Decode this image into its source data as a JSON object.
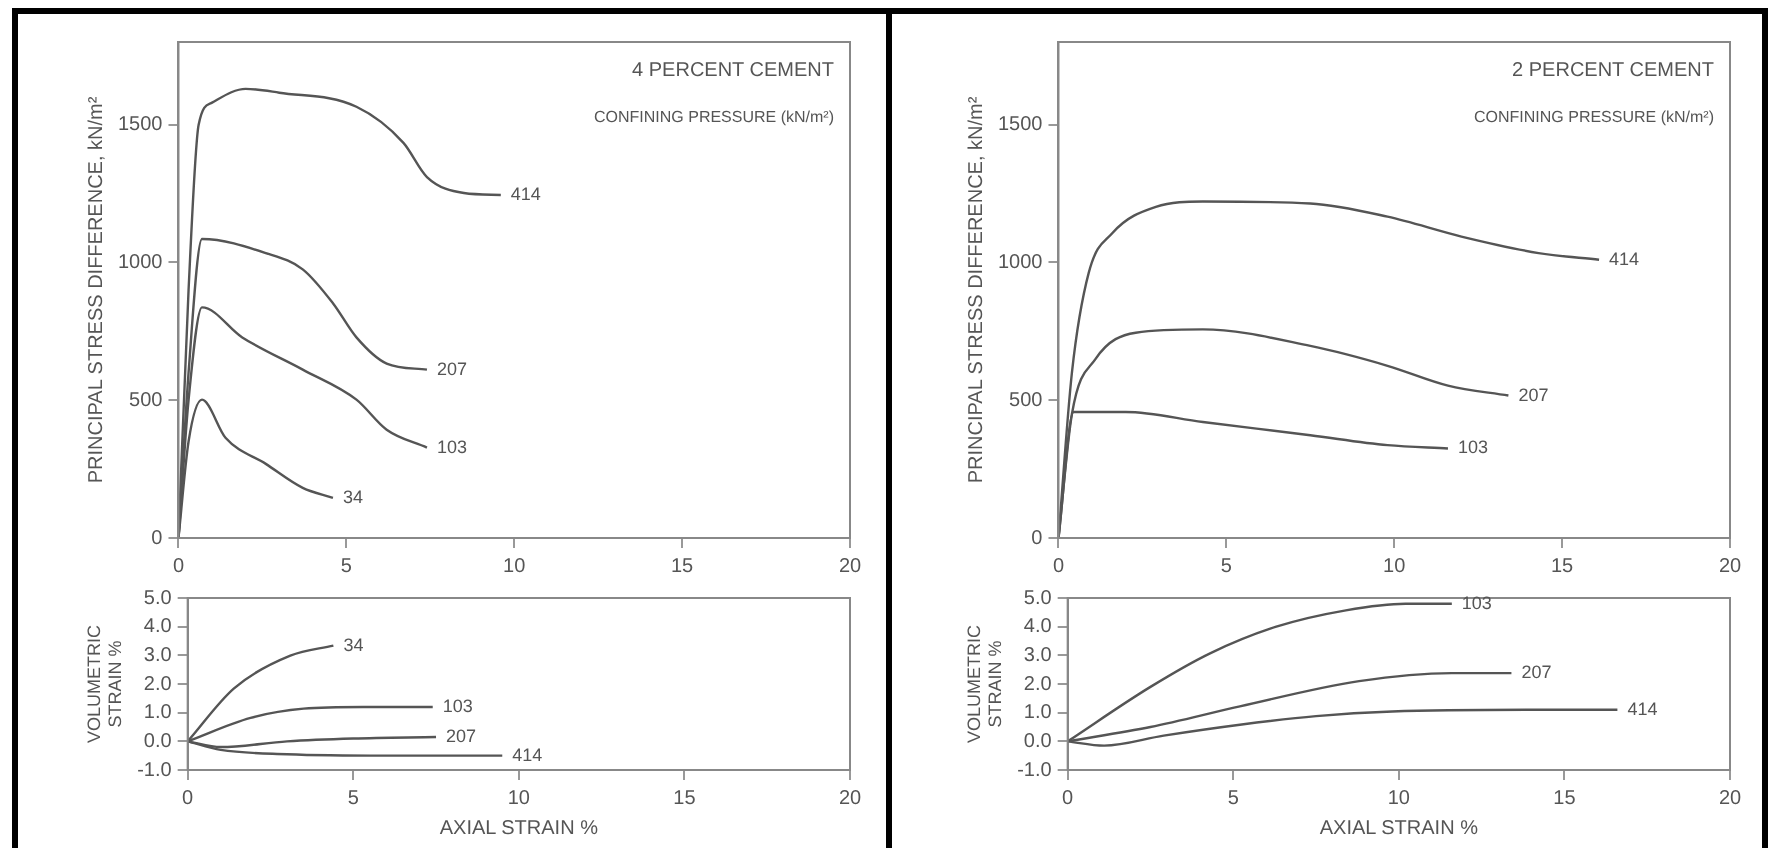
{
  "chart_data": [
    {
      "type": "line",
      "ylabel": "PRINCIPAL STRESS DIFFERENCE, kN/m²",
      "annotations": [
        "4 PERCENT CEMENT",
        "CONFINING PRESSURE (kN/m²)"
      ],
      "xlim": [
        0,
        20
      ],
      "xticks": [
        0,
        5,
        10,
        15,
        20
      ],
      "ylim": [
        0,
        1800
      ],
      "yticks": [
        0,
        500,
        1000,
        1500
      ],
      "marker": "none",
      "series": [
        {
          "name": "414",
          "color": "#555555",
          "x": [
            0,
            0.3,
            0.6,
            1,
            2,
            3,
            5.3,
            6.7,
            7.4,
            8.5,
            9.6
          ],
          "values": [
            0,
            900,
            1500,
            1580,
            1630,
            1616,
            1565,
            1434,
            1310,
            1252,
            1245
          ]
        },
        {
          "name": "207",
          "color": "#555555",
          "x": [
            0,
            0.3,
            0.7,
            2.6,
            3.7,
            4.6,
            5.3,
            6.2,
            7.4
          ],
          "values": [
            0,
            600,
            1085,
            1034,
            975,
            852,
            728,
            633,
            611
          ]
        },
        {
          "name": "103",
          "color": "#555555",
          "x": [
            0,
            0.3,
            0.7,
            1.9,
            3.7,
            5.3,
            6.2,
            7.4
          ],
          "values": [
            0,
            500,
            837,
            728,
            611,
            502,
            393,
            328
          ]
        },
        {
          "name": "34",
          "color": "#555555",
          "x": [
            0,
            0.3,
            0.7,
            1.4,
            2.6,
            3.7,
            4.6
          ],
          "values": [
            0,
            350,
            502,
            364,
            269,
            182,
            146
          ]
        }
      ]
    },
    {
      "type": "line",
      "ylabel": "PRINCIPAL STRESS DIFFERENCE, kN/m²",
      "annotations": [
        "2 PERCENT CEMENT",
        "CONFINING PRESSURE (kN/m²)"
      ],
      "xlim": [
        0,
        20
      ],
      "xticks": [
        0,
        5,
        10,
        15,
        20
      ],
      "ylim": [
        0,
        1800
      ],
      "yticks": [
        0,
        500,
        1000,
        1500
      ],
      "marker": "none",
      "series": [
        {
          "name": "414",
          "color": "#555555",
          "x": [
            0,
            0.4,
            0.9,
            1.6,
            2.9,
            4.3,
            7.5,
            9.8,
            12,
            14.3,
            16.1
          ],
          "values": [
            0,
            600,
            962,
            1106,
            1202,
            1221,
            1214,
            1166,
            1094,
            1034,
            1010
          ]
        },
        {
          "name": "207",
          "color": "#555555",
          "x": [
            0,
            0.4,
            1.1,
            2.3,
            4.3,
            7.5,
            9.8,
            11.6,
            13.4
          ],
          "values": [
            0,
            450,
            649,
            745,
            757,
            697,
            625,
            553,
            517
          ]
        },
        {
          "name": "103",
          "color": "#555555",
          "x": [
            0,
            0.45,
            2,
            4.3,
            7.5,
            9.8,
            11.6
          ],
          "values": [
            0,
            457,
            457,
            421,
            373,
            337,
            325
          ]
        }
      ]
    },
    {
      "type": "line",
      "xlabel": "AXIAL STRAIN %",
      "ylabel": "VOLUMETRIC STRAIN %",
      "xlim": [
        0,
        20
      ],
      "xticks": [
        0,
        5,
        10,
        15,
        20
      ],
      "ylim": [
        -1,
        5
      ],
      "yticks": [
        {
          "value": -1,
          "label": "-1.0"
        },
        {
          "value": 0,
          "label": "0.0"
        },
        {
          "value": 1,
          "label": "1.0"
        },
        {
          "value": 2,
          "label": "2.0"
        },
        {
          "value": 3,
          "label": "3.0"
        },
        {
          "value": 4,
          "label": "4.0"
        },
        {
          "value": 5,
          "label": "5.0"
        }
      ],
      "marker": "none",
      "series": [
        {
          "name": "34",
          "color": "#555555",
          "x": [
            0,
            1.4,
            3.1,
            4.4
          ],
          "values": [
            0,
            1.85,
            2.99,
            3.34
          ]
        },
        {
          "name": "103",
          "color": "#555555",
          "x": [
            0,
            1.9,
            3.5,
            5.3,
            7.4
          ],
          "values": [
            0,
            0.82,
            1.14,
            1.2,
            1.2
          ]
        },
        {
          "name": "207",
          "color": "#555555",
          "x": [
            0,
            1,
            3,
            5,
            7.5
          ],
          "values": [
            0,
            -0.2,
            0,
            0.1,
            0.15
          ]
        },
        {
          "name": "414",
          "color": "#555555",
          "x": [
            0,
            1,
            3,
            6,
            9.5
          ],
          "values": [
            0,
            -0.3,
            -0.45,
            -0.5,
            -0.5
          ]
        }
      ]
    },
    {
      "type": "line",
      "xlabel": "AXIAL STRAIN %",
      "ylabel": "VOLUMETRIC STRAIN %",
      "xlim": [
        0,
        20
      ],
      "xticks": [
        0,
        5,
        10,
        15,
        20
      ],
      "ylim": [
        -1,
        5
      ],
      "yticks": [
        {
          "value": -1,
          "label": "-1.0"
        },
        {
          "value": 0,
          "label": "0.0"
        },
        {
          "value": 1,
          "label": "1.0"
        },
        {
          "value": 2,
          "label": "2.0"
        },
        {
          "value": 3,
          "label": "3.0"
        },
        {
          "value": 4,
          "label": "4.0"
        },
        {
          "value": 5,
          "label": "5.0"
        }
      ],
      "marker": "none",
      "series": [
        {
          "name": "103",
          "color": "#555555",
          "x": [
            0,
            2.5,
            4.3,
            6.3,
            8.4,
            10.2,
            11.6
          ],
          "values": [
            0,
            1.9,
            3.07,
            4.0,
            4.57,
            4.8,
            4.8
          ]
        },
        {
          "name": "207",
          "color": "#555555",
          "x": [
            0,
            2.5,
            5.2,
            8.8,
            11.6,
            13.4
          ],
          "values": [
            0,
            0.5,
            1.22,
            2.1,
            2.38,
            2.38
          ]
        },
        {
          "name": "414",
          "color": "#555555",
          "x": [
            0,
            1.1,
            2.9,
            5.2,
            7.5,
            9.8,
            14.3,
            16.6
          ],
          "values": [
            0,
            -0.15,
            0.2,
            0.58,
            0.88,
            1.04,
            1.1,
            1.1
          ]
        }
      ]
    }
  ]
}
